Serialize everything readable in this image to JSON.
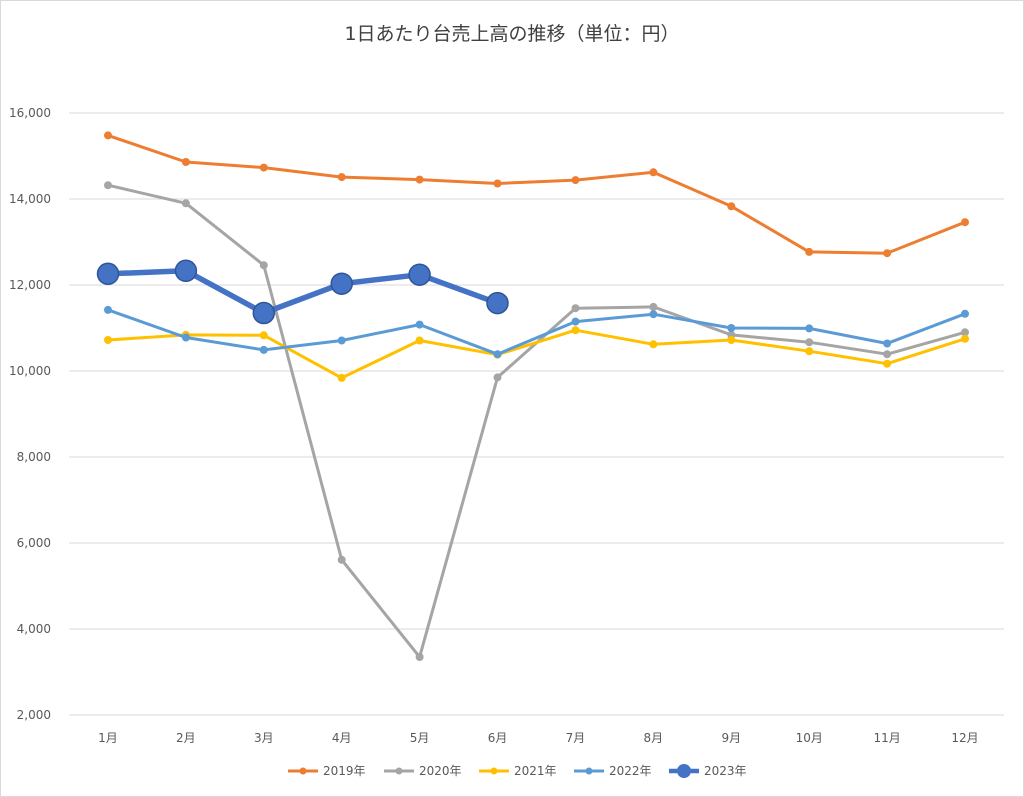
{
  "chart_data": {
    "type": "line",
    "title": "1日あたり台売上高の推移（単位：円）",
    "xlabel": "",
    "ylabel": "",
    "categories": [
      "1月",
      "2月",
      "3月",
      "4月",
      "5月",
      "6月",
      "7月",
      "8月",
      "9月",
      "10月",
      "11月",
      "12月"
    ],
    "ylim": [
      2000,
      16000
    ],
    "yticks": [
      2000,
      4000,
      6000,
      8000,
      10000,
      12000,
      14000,
      16000
    ],
    "ytick_labels": [
      "2,000",
      "4,000",
      "6,000",
      "8,000",
      "10,000",
      "12,000",
      "14,000",
      "16,000"
    ],
    "grid": "horizontal",
    "legend_position": "bottom",
    "series": [
      {
        "name": "2019年",
        "color": "#ED7D31",
        "emphasis": "normal",
        "values": [
          15480,
          14860,
          14730,
          14510,
          14450,
          14360,
          14440,
          14620,
          13830,
          12770,
          12740,
          13460
        ]
      },
      {
        "name": "2020年",
        "color": "#A5A5A5",
        "emphasis": "normal",
        "values": [
          14320,
          13900,
          12460,
          5610,
          3350,
          9850,
          11460,
          11490,
          10840,
          10670,
          10390,
          10900
        ]
      },
      {
        "name": "2021年",
        "color": "#FFC000",
        "emphasis": "normal",
        "values": [
          10720,
          10840,
          10830,
          9840,
          10710,
          10380,
          10950,
          10620,
          10720,
          10460,
          10170,
          10750
        ]
      },
      {
        "name": "2022年",
        "color": "#5B9BD5",
        "emphasis": "normal",
        "values": [
          11420,
          10780,
          10490,
          10710,
          11080,
          10390,
          11150,
          11320,
          11000,
          10990,
          10640,
          11330
        ]
      },
      {
        "name": "2023年",
        "color": "#4472C4",
        "emphasis": "bold",
        "values": [
          12260,
          12330,
          11350,
          12030,
          12240,
          11580,
          null,
          null,
          null,
          null,
          null,
          null
        ]
      }
    ]
  }
}
